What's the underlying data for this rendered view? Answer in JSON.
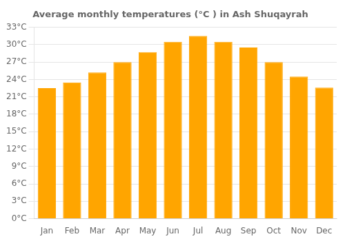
{
  "chart_data": {
    "type": "bar",
    "title": "Average monthly temperatures (°C ) in Ash Shuqayrah",
    "categories": [
      "Jan",
      "Feb",
      "Mar",
      "Apr",
      "May",
      "Jun",
      "Jul",
      "Aug",
      "Sep",
      "Oct",
      "Nov",
      "Dec"
    ],
    "values": [
      22.5,
      23.5,
      25.2,
      27.0,
      28.7,
      30.5,
      31.5,
      30.5,
      29.5,
      27.0,
      24.5,
      22.6
    ],
    "color": "#FFA500",
    "ylim": [
      0,
      33
    ],
    "yticks": [
      {
        "value": 0,
        "label": "0°C"
      },
      {
        "value": 3,
        "label": "3°C"
      },
      {
        "value": 6,
        "label": "6°C"
      },
      {
        "value": 9,
        "label": "9°C"
      },
      {
        "value": 12,
        "label": "12°C"
      },
      {
        "value": 15,
        "label": "15°C"
      },
      {
        "value": 18,
        "label": "18°C"
      },
      {
        "value": 21,
        "label": "21°C"
      },
      {
        "value": 24,
        "label": "24°C"
      },
      {
        "value": 27,
        "label": "27°C"
      },
      {
        "value": 30,
        "label": "30°C"
      },
      {
        "value": 33,
        "label": "33°C"
      }
    ],
    "grid": true
  }
}
